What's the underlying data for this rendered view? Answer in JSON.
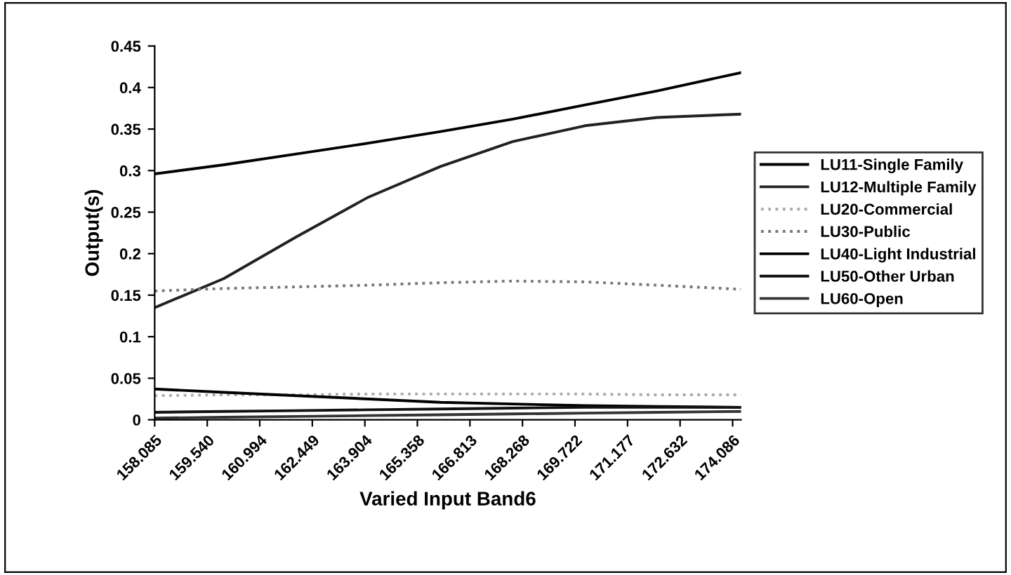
{
  "chart_data": {
    "type": "line",
    "xlabel": "Varied Input Band6",
    "ylabel": "Output(s)",
    "x": [
      158.085,
      160.0,
      162.0,
      164.0,
      166.0,
      168.0,
      170.0,
      172.0,
      174.32
    ],
    "xlim": [
      158.085,
      174.32
    ],
    "xticks": [
      158.085,
      {
        "value": 159.54,
        "label": "159.540"
      },
      160.994,
      162.449,
      163.904,
      165.358,
      166.813,
      168.268,
      169.722,
      171.177,
      172.632,
      174.086
    ],
    "ylim": [
      0,
      0.45
    ],
    "yticks": [
      0,
      0.05,
      0.1,
      0.15,
      0.2,
      0.25,
      0.3,
      0.35,
      0.4,
      0.45
    ],
    "grid": false,
    "legend": "right",
    "marker": "none",
    "series": [
      {
        "name": "LU11-Single Family",
        "color": "#000000",
        "values": [
          0.296,
          0.307,
          0.32,
          0.333,
          0.347,
          0.362,
          0.379,
          0.396,
          0.418
        ]
      },
      {
        "name": "LU12-Multiple Family",
        "color": "#222222",
        "values": [
          0.135,
          0.17,
          0.22,
          0.268,
          0.305,
          0.335,
          0.354,
          0.364,
          0.368
        ]
      },
      {
        "name": "LU20-Commercial",
        "color": "#aaaaaa",
        "line_style": "dotted",
        "values": [
          0.029,
          0.03,
          0.03,
          0.031,
          0.031,
          0.031,
          0.031,
          0.03,
          0.03
        ]
      },
      {
        "name": "LU30-Public",
        "color": "#777777",
        "line_style": "dotted",
        "values": [
          0.155,
          0.158,
          0.16,
          0.162,
          0.165,
          0.167,
          0.166,
          0.162,
          0.157
        ]
      },
      {
        "name": "LU40-Light Industrial",
        "color": "#000000",
        "values": [
          0.037,
          0.033,
          0.029,
          0.025,
          0.021,
          0.019,
          0.017,
          0.016,
          0.015
        ]
      },
      {
        "name": "LU50-Other Urban",
        "color": "#111111",
        "values": [
          0.009,
          0.01,
          0.011,
          0.012,
          0.013,
          0.014,
          0.015,
          0.015,
          0.015
        ]
      },
      {
        "name": "LU60-Open",
        "color": "#333333",
        "values": [
          0.002,
          0.003,
          0.004,
          0.005,
          0.006,
          0.007,
          0.008,
          0.009,
          0.01
        ]
      }
    ]
  }
}
